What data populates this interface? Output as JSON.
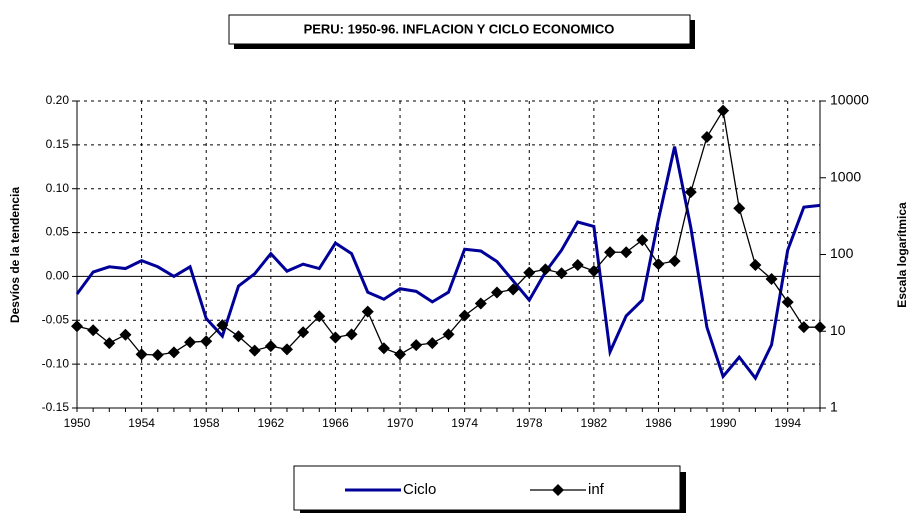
{
  "chart_data": {
    "type": "line",
    "title": "PERU: 1950-96. INFLACION Y CICLO ECONOMICO",
    "y_label": "Desvíos de la tendencia",
    "y2_label": "Escala logarítmica",
    "x": [
      1950,
      1951,
      1952,
      1953,
      1954,
      1955,
      1956,
      1957,
      1958,
      1959,
      1960,
      1961,
      1962,
      1963,
      1964,
      1965,
      1966,
      1967,
      1968,
      1969,
      1970,
      1971,
      1972,
      1973,
      1974,
      1975,
      1976,
      1977,
      1978,
      1979,
      1980,
      1981,
      1982,
      1983,
      1984,
      1985,
      1986,
      1987,
      1988,
      1989,
      1990,
      1991,
      1992,
      1993,
      1994,
      1995,
      1996
    ],
    "xlim": [
      1950,
      1996
    ],
    "xticks": [
      1950,
      1954,
      1958,
      1962,
      1966,
      1970,
      1974,
      1978,
      1982,
      1986,
      1990,
      1994
    ],
    "ylim": [
      -0.15,
      0.2
    ],
    "yticks": [
      {
        "value": -0.15,
        "label": "-0.15"
      },
      {
        "value": -0.1,
        "label": "-0.10"
      },
      {
        "value": -0.05,
        "label": "-0.05"
      },
      {
        "value": 0,
        "label": "0.00"
      },
      {
        "value": 0.05,
        "label": "0.05"
      },
      {
        "value": 0.1,
        "label": "0.10"
      },
      {
        "value": 0.15,
        "label": "0.15"
      },
      {
        "value": 0.2,
        "label": "0.20"
      }
    ],
    "y2lim": [
      1,
      10000
    ],
    "y2ticks": [
      1,
      10,
      100,
      1000,
      10000
    ],
    "y2_log": true,
    "grid": true,
    "series": [
      {
        "name": "Ciclo",
        "color": "#000099",
        "values": [
          -0.02,
          0.005,
          0.011,
          0.009,
          0.018,
          0.011,
          0.0,
          0.011,
          -0.048,
          -0.068,
          -0.011,
          0.003,
          0.026,
          0.006,
          0.014,
          0.009,
          0.038,
          0.026,
          -0.018,
          -0.026,
          -0.014,
          -0.017,
          -0.029,
          -0.018,
          0.031,
          0.029,
          0.017,
          -0.005,
          -0.027,
          0.005,
          0.03,
          0.062,
          0.057,
          -0.086,
          -0.045,
          -0.027,
          0.065,
          0.148,
          0.056,
          -0.058,
          -0.114,
          -0.092,
          -0.116,
          -0.078,
          0.03,
          0.079,
          0.081
        ]
      },
      {
        "name": "inf",
        "color": "#000000",
        "axis": "y2",
        "values": [
          11.6,
          10.3,
          7,
          9,
          5,
          4.9,
          5.3,
          7.2,
          7.4,
          12,
          8.6,
          5.6,
          6.4,
          5.8,
          9.7,
          15.7,
          8.3,
          9.1,
          18,
          6,
          5,
          6.6,
          7,
          9.1,
          16,
          23,
          32,
          35,
          58,
          64,
          57,
          73,
          61,
          107,
          107,
          154,
          75,
          82,
          650,
          3400,
          7500,
          400,
          73,
          48,
          24,
          11.3,
          11.3
        ]
      }
    ]
  }
}
